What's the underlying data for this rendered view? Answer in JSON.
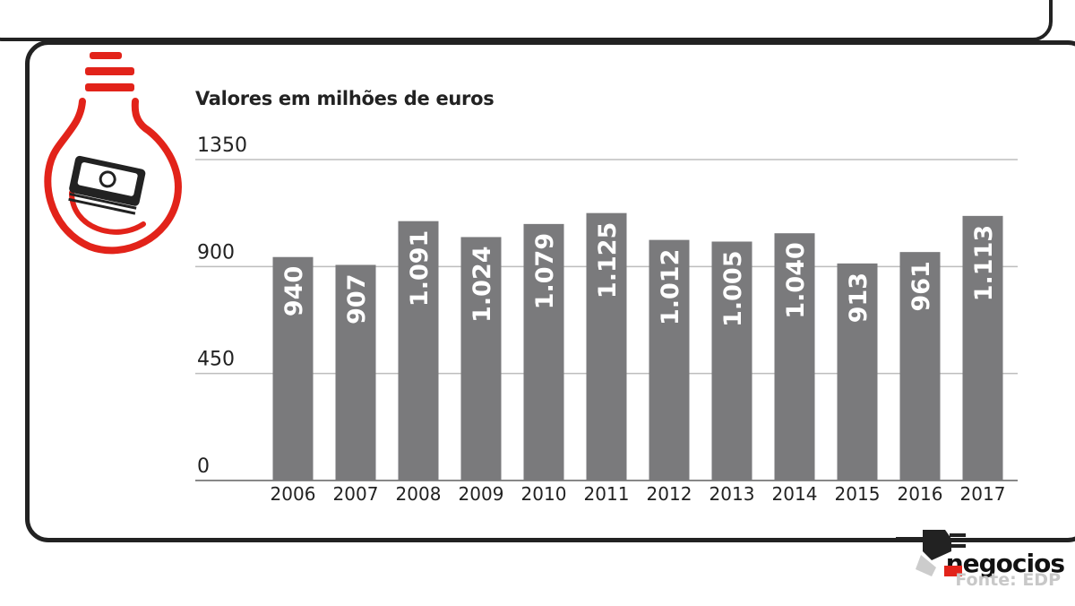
{
  "subtitle": "Valores em milhões de euros",
  "source": "Fonte: EDP",
  "brand": "negocios",
  "colors": {
    "bar": "#7a7a7c",
    "accent": "#e2231a",
    "grid": "#bdbdbd",
    "frame": "#222222"
  },
  "icons": {
    "bulb": "lightbulb-money-icon",
    "plug": "plug-icon"
  },
  "chart_data": {
    "type": "bar",
    "title": "",
    "xlabel": "",
    "ylabel": "",
    "ylim": [
      0,
      1350
    ],
    "yticks": [
      0,
      450,
      900,
      1350
    ],
    "ytick_labels": [
      "0",
      "450",
      "900",
      "1350"
    ],
    "grid": true,
    "categories": [
      "2006",
      "2007",
      "2008",
      "2009",
      "2010",
      "2011",
      "2012",
      "2013",
      "2014",
      "2015",
      "2016",
      "2017"
    ],
    "values": [
      940,
      907,
      1091,
      1024,
      1079,
      1125,
      1012,
      1005,
      1040,
      913,
      961,
      1113
    ],
    "data_labels": [
      "940",
      "907",
      "1.091",
      "1.024",
      "1.079",
      "1.125",
      "1.012",
      "1.005",
      "1.040",
      "913",
      "961",
      "1.113"
    ]
  }
}
